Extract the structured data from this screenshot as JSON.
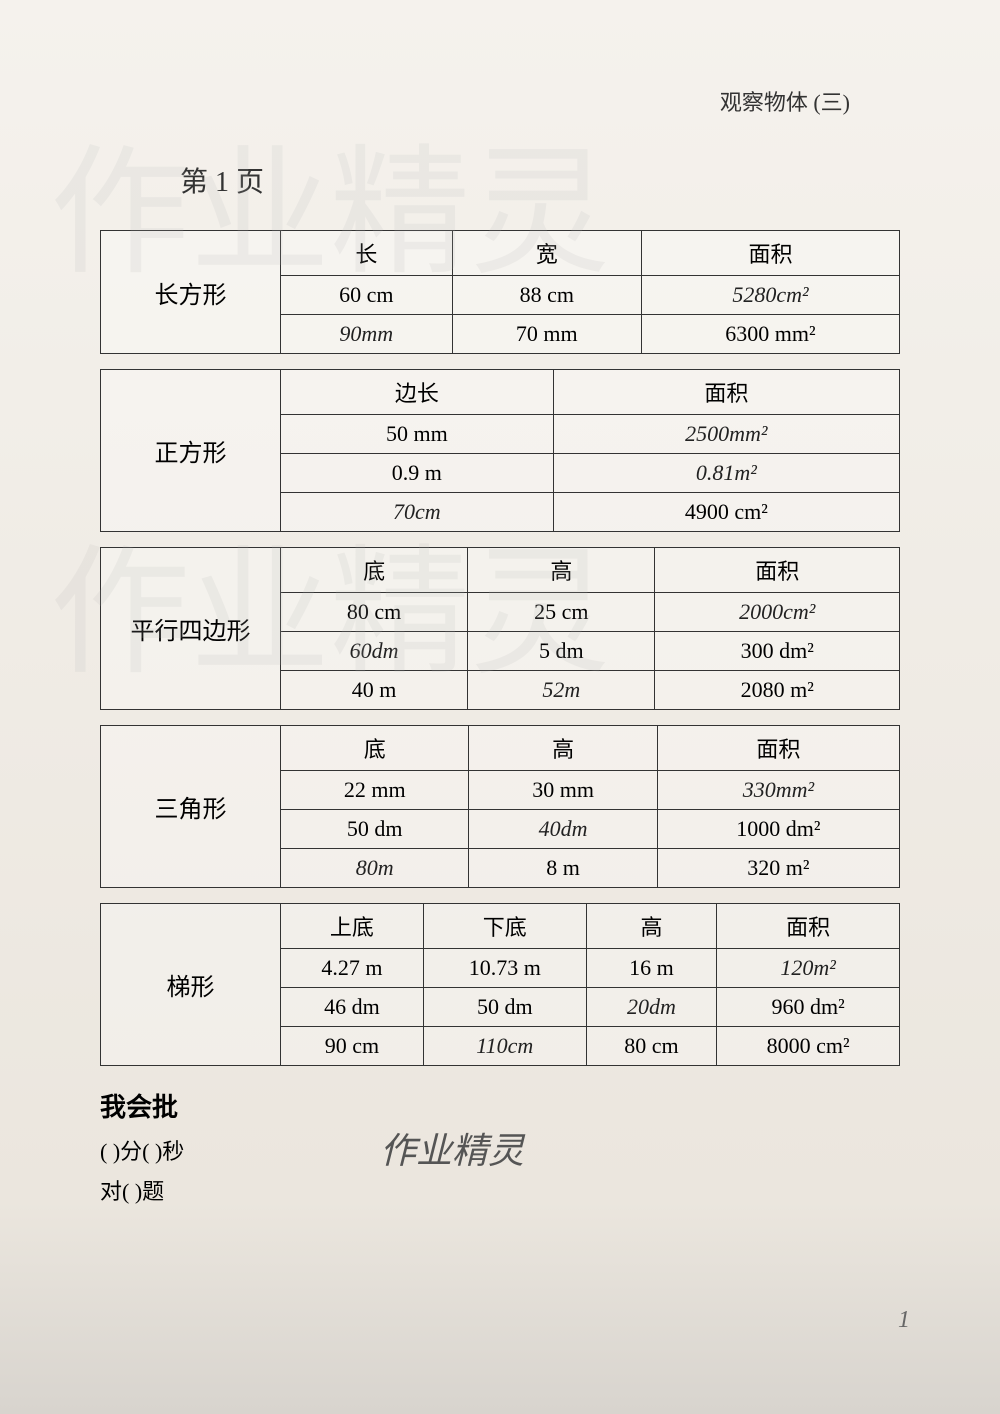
{
  "header": {
    "chapter": "观察物体 (三)"
  },
  "page_title": "第 1 页",
  "tables": {
    "rectangle": {
      "label": "长方形",
      "headers": [
        "长",
        "宽",
        "面积"
      ],
      "rows": [
        {
          "col1": "60 cm",
          "col1_hw": false,
          "col2": "88 cm",
          "col2_hw": false,
          "col3": "5280cm²",
          "col3_hw": true
        },
        {
          "col1": "90mm",
          "col1_hw": true,
          "col2": "70 mm",
          "col2_hw": false,
          "col3": "6300 mm²",
          "col3_hw": false
        }
      ]
    },
    "square": {
      "label": "正方形",
      "headers": [
        "边长",
        "面积"
      ],
      "rows": [
        {
          "col1": "50 mm",
          "col1_hw": false,
          "col2": "2500mm²",
          "col2_hw": true
        },
        {
          "col1": "0.9 m",
          "col1_hw": false,
          "col2": "0.81m²",
          "col2_hw": true
        },
        {
          "col1": "70cm",
          "col1_hw": true,
          "col2": "4900 cm²",
          "col2_hw": false
        }
      ]
    },
    "parallelogram": {
      "label": "平行四边形",
      "headers": [
        "底",
        "高",
        "面积"
      ],
      "rows": [
        {
          "col1": "80 cm",
          "col1_hw": false,
          "col2": "25 cm",
          "col2_hw": false,
          "col3": "2000cm²",
          "col3_hw": true
        },
        {
          "col1": "60dm",
          "col1_hw": true,
          "col2": "5 dm",
          "col2_hw": false,
          "col3": "300 dm²",
          "col3_hw": false
        },
        {
          "col1": "40 m",
          "col1_hw": false,
          "col2": "52m",
          "col2_hw": true,
          "col3": "2080 m²",
          "col3_hw": false
        }
      ]
    },
    "triangle": {
      "label": "三角形",
      "headers": [
        "底",
        "高",
        "面积"
      ],
      "rows": [
        {
          "col1": "22 mm",
          "col1_hw": false,
          "col2": "30 mm",
          "col2_hw": false,
          "col3": "330mm²",
          "col3_hw": true
        },
        {
          "col1": "50 dm",
          "col1_hw": false,
          "col2": "40dm",
          "col2_hw": true,
          "col3": "1000 dm²",
          "col3_hw": false
        },
        {
          "col1": "80m",
          "col1_hw": true,
          "col2": "8 m",
          "col2_hw": false,
          "col3": "320 m²",
          "col3_hw": false
        }
      ]
    },
    "trapezoid": {
      "label": "梯形",
      "headers": [
        "上底",
        "下底",
        "高",
        "面积"
      ],
      "rows": [
        {
          "col1": "4.27 m",
          "col1_hw": false,
          "col2": "10.73 m",
          "col2_hw": false,
          "col3": "16 m",
          "col3_hw": false,
          "col4": "120m²",
          "col4_hw": true
        },
        {
          "col1": "46 dm",
          "col1_hw": false,
          "col2": "50 dm",
          "col2_hw": false,
          "col3": "20dm",
          "col3_hw": true,
          "col4": "960 dm²",
          "col4_hw": false
        },
        {
          "col1": "90 cm",
          "col1_hw": false,
          "col2": "110cm",
          "col2_hw": true,
          "col3": "80 cm",
          "col3_hw": false,
          "col4": "8000 cm²",
          "col4_hw": false
        }
      ]
    }
  },
  "footer": {
    "title": "我会批",
    "line1": "(    )分(    )秒",
    "line2": "对(    )题"
  },
  "watermark": "作业精灵",
  "page_number": "1",
  "styling": {
    "border_color": "#333333",
    "text_color": "#333333",
    "handwritten_color": "#222222",
    "background_color": "#f5f2ed",
    "table_font_size": 22,
    "label_font_size": 24,
    "header_font_size": 22
  }
}
